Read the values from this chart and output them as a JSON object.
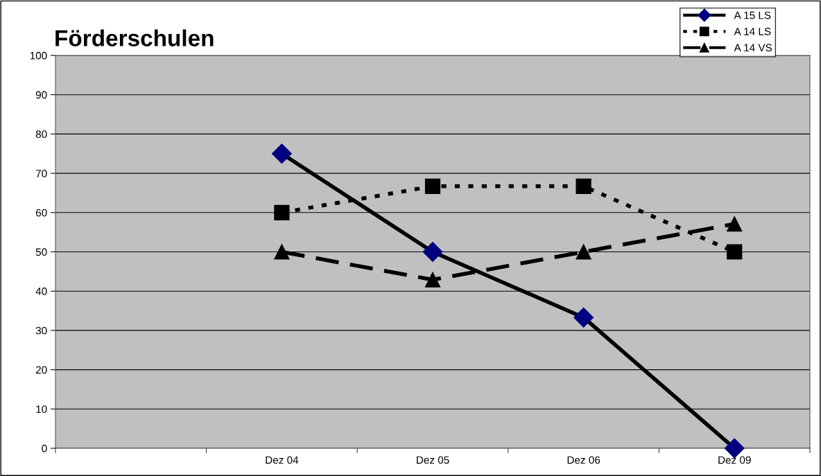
{
  "chart_data": {
    "type": "line",
    "title": "Förderschulen",
    "categories": [
      null,
      "Dez 04",
      "Dez 05",
      "Dez 06",
      "Dez 09"
    ],
    "series": [
      {
        "name": "A 15 LS",
        "color": "#000000",
        "colors": [
          "#000080",
          "#000080",
          "#000080",
          "#000080",
          "#000080"
        ],
        "marker": "diamond",
        "line_style": "solid",
        "values": [
          null,
          75,
          50,
          33.3,
          0
        ]
      },
      {
        "name": "A 14 LS",
        "color": "#000000",
        "marker": "square",
        "line_style": "dotted",
        "values": [
          null,
          60,
          66.7,
          66.7,
          50
        ]
      },
      {
        "name": "A 14 VS",
        "color": "#000000",
        "marker": "triangle",
        "line_style": "dashed",
        "values": [
          null,
          50,
          42.9,
          50,
          57.1
        ]
      }
    ],
    "ylim": [
      0,
      100
    ],
    "yticks": [
      0,
      10,
      20,
      30,
      40,
      50,
      60,
      70,
      80,
      90,
      100
    ],
    "grid": "y",
    "legend": "top right"
  }
}
